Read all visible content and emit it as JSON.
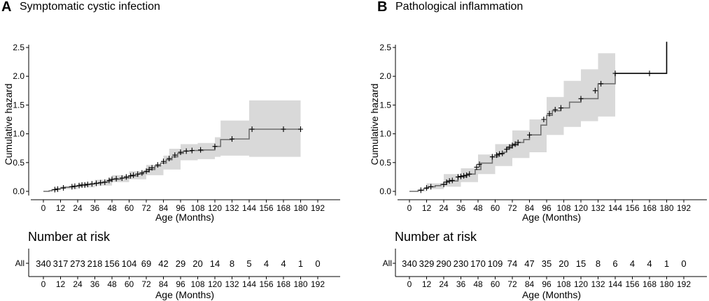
{
  "chart_data": [
    {
      "type": "line",
      "panel_letter": "A",
      "title": "Symptomatic cystic infection",
      "xlabel": "Age (Months)",
      "ylabel": "Cumulative hazard",
      "xlim": [
        0,
        192
      ],
      "ylim": [
        0,
        2.6
      ],
      "x_ticks": [
        0,
        12,
        24,
        36,
        48,
        60,
        72,
        84,
        96,
        108,
        120,
        132,
        144,
        156,
        168,
        180,
        192
      ],
      "y_ticks": [
        0.0,
        0.5,
        1.0,
        1.5,
        2.0,
        2.5
      ],
      "y_tick_labels": [
        "0.0",
        "0.5",
        "1.0",
        "1.5",
        "2.0",
        "2.5"
      ],
      "grid": false,
      "series": [
        {
          "name": "cumulative hazard",
          "step": [
            [
              0,
              0
            ],
            [
              4,
              0.01
            ],
            [
              6,
              0.03
            ],
            [
              9,
              0.04
            ],
            [
              12,
              0.06
            ],
            [
              15,
              0.07
            ],
            [
              18,
              0.08
            ],
            [
              21,
              0.09
            ],
            [
              24,
              0.1
            ],
            [
              27,
              0.11
            ],
            [
              30,
              0.12
            ],
            [
              33,
              0.13
            ],
            [
              36,
              0.14
            ],
            [
              39,
              0.15
            ],
            [
              42,
              0.16
            ],
            [
              45,
              0.18
            ],
            [
              48,
              0.21
            ],
            [
              54,
              0.23
            ],
            [
              60,
              0.27
            ],
            [
              66,
              0.3
            ],
            [
              70,
              0.34
            ],
            [
              74,
              0.38
            ],
            [
              78,
              0.44
            ],
            [
              82,
              0.49
            ],
            [
              86,
              0.55
            ],
            [
              90,
              0.6
            ],
            [
              94,
              0.66
            ],
            [
              98,
              0.7
            ],
            [
              104,
              0.71
            ],
            [
              112,
              0.72
            ],
            [
              120,
              0.78
            ],
            [
              124,
              0.9
            ],
            [
              132,
              0.91
            ],
            [
              144,
              1.08
            ],
            [
              180,
              1.08
            ]
          ],
          "ci_upper": [
            [
              0,
              0.01
            ],
            [
              12,
              0.09
            ],
            [
              24,
              0.14
            ],
            [
              36,
              0.2
            ],
            [
              48,
              0.28
            ],
            [
              60,
              0.35
            ],
            [
              72,
              0.46
            ],
            [
              84,
              0.62
            ],
            [
              88,
              0.74
            ],
            [
              96,
              0.82
            ],
            [
              108,
              0.84
            ],
            [
              120,
              0.94
            ],
            [
              124,
              1.23
            ],
            [
              144,
              1.58
            ],
            [
              180,
              1.58
            ]
          ],
          "ci_lower": [
            [
              0,
              0.0
            ],
            [
              12,
              0.04
            ],
            [
              24,
              0.07
            ],
            [
              36,
              0.1
            ],
            [
              48,
              0.16
            ],
            [
              60,
              0.21
            ],
            [
              72,
              0.28
            ],
            [
              84,
              0.38
            ],
            [
              96,
              0.54
            ],
            [
              108,
              0.56
            ],
            [
              120,
              0.6
            ],
            [
              124,
              0.62
            ],
            [
              144,
              0.6
            ],
            [
              180,
              0.6
            ]
          ],
          "censor_marks": [
            [
              8,
              0.03
            ],
            [
              10,
              0.04
            ],
            [
              14,
              0.06
            ],
            [
              20,
              0.08
            ],
            [
              22,
              0.09
            ],
            [
              25,
              0.1
            ],
            [
              27,
              0.11
            ],
            [
              29,
              0.11
            ],
            [
              31,
              0.12
            ],
            [
              34,
              0.13
            ],
            [
              37,
              0.14
            ],
            [
              40,
              0.15
            ],
            [
              43,
              0.16
            ],
            [
              46,
              0.19
            ],
            [
              48,
              0.21
            ],
            [
              51,
              0.22
            ],
            [
              55,
              0.23
            ],
            [
              58,
              0.25
            ],
            [
              61,
              0.27
            ],
            [
              63,
              0.28
            ],
            [
              66,
              0.3
            ],
            [
              69,
              0.32
            ],
            [
              72,
              0.35
            ],
            [
              74,
              0.38
            ],
            [
              76,
              0.41
            ],
            [
              80,
              0.46
            ],
            [
              84,
              0.52
            ],
            [
              88,
              0.57
            ],
            [
              92,
              0.63
            ],
            [
              96,
              0.68
            ],
            [
              100,
              0.7
            ],
            [
              104,
              0.71
            ],
            [
              110,
              0.72
            ],
            [
              120,
              0.78
            ],
            [
              132,
              0.91
            ],
            [
              146,
              1.08
            ],
            [
              168,
              1.08
            ],
            [
              180,
              1.08
            ]
          ]
        }
      ],
      "risk_table": {
        "title": "Number at risk",
        "row_label": "All",
        "times": [
          0,
          12,
          24,
          36,
          48,
          60,
          72,
          84,
          96,
          108,
          120,
          132,
          144,
          156,
          168,
          180,
          192
        ],
        "counts": [
          "340",
          "317",
          "273",
          "218",
          "156",
          "104",
          "69",
          "42",
          "29",
          "20",
          "14",
          "8",
          "5",
          "4",
          "4",
          "1",
          "0"
        ],
        "xlabel": "Age (Months)"
      }
    },
    {
      "type": "line",
      "panel_letter": "B",
      "title": "Pathological inflammation",
      "xlabel": "Age (Months)",
      "ylabel": "Cumulative hazard",
      "xlim": [
        0,
        192
      ],
      "ylim": [
        0,
        2.6
      ],
      "x_ticks": [
        0,
        12,
        24,
        36,
        48,
        60,
        72,
        84,
        96,
        108,
        120,
        132,
        144,
        156,
        168,
        180,
        192
      ],
      "y_ticks": [
        0.0,
        0.5,
        1.0,
        1.5,
        2.0,
        2.5
      ],
      "y_tick_labels": [
        "0.0",
        "0.5",
        "1.0",
        "1.5",
        "2.0",
        "2.5"
      ],
      "grid": false,
      "series": [
        {
          "name": "cumulative hazard",
          "step": [
            [
              0,
              0
            ],
            [
              6,
              0.02
            ],
            [
              10,
              0.05
            ],
            [
              13,
              0.08
            ],
            [
              18,
              0.1
            ],
            [
              22,
              0.12
            ],
            [
              26,
              0.18
            ],
            [
              34,
              0.25
            ],
            [
              40,
              0.3
            ],
            [
              46,
              0.38
            ],
            [
              50,
              0.49
            ],
            [
              58,
              0.6
            ],
            [
              62,
              0.65
            ],
            [
              66,
              0.68
            ],
            [
              68,
              0.75
            ],
            [
              72,
              0.8
            ],
            [
              76,
              0.85
            ],
            [
              80,
              0.9
            ],
            [
              84,
              0.98
            ],
            [
              92,
              1.15
            ],
            [
              96,
              1.32
            ],
            [
              100,
              1.4
            ],
            [
              106,
              1.45
            ],
            [
              112,
              1.55
            ],
            [
              120,
              1.61
            ],
            [
              132,
              1.87
            ],
            [
              144,
              2.05
            ],
            [
              180,
              2.05
            ],
            [
              180,
              2.6
            ]
          ],
          "ci_upper": [
            [
              0,
              0.01
            ],
            [
              12,
              0.14
            ],
            [
              24,
              0.3
            ],
            [
              36,
              0.4
            ],
            [
              48,
              0.64
            ],
            [
              60,
              0.82
            ],
            [
              72,
              1.06
            ],
            [
              84,
              1.25
            ],
            [
              96,
              1.64
            ],
            [
              108,
              1.92
            ],
            [
              120,
              2.12
            ],
            [
              132,
              2.4
            ],
            [
              144,
              2.4
            ]
          ],
          "ci_lower": [
            [
              0,
              0.0
            ],
            [
              12,
              0.04
            ],
            [
              24,
              0.08
            ],
            [
              36,
              0.16
            ],
            [
              48,
              0.3
            ],
            [
              60,
              0.44
            ],
            [
              72,
              0.58
            ],
            [
              84,
              0.68
            ],
            [
              96,
              0.98
            ],
            [
              108,
              1.12
            ],
            [
              120,
              1.22
            ],
            [
              132,
              1.3
            ],
            [
              144,
              1.3
            ]
          ],
          "censor_marks": [
            [
              8,
              0.02
            ],
            [
              12,
              0.06
            ],
            [
              15,
              0.08
            ],
            [
              24,
              0.12
            ],
            [
              26,
              0.16
            ],
            [
              28,
              0.18
            ],
            [
              30,
              0.19
            ],
            [
              34,
              0.25
            ],
            [
              36,
              0.26
            ],
            [
              38,
              0.27
            ],
            [
              40,
              0.28
            ],
            [
              42,
              0.3
            ],
            [
              47,
              0.42
            ],
            [
              49,
              0.47
            ],
            [
              58,
              0.6
            ],
            [
              61,
              0.63
            ],
            [
              63,
              0.65
            ],
            [
              65,
              0.66
            ],
            [
              68,
              0.73
            ],
            [
              70,
              0.77
            ],
            [
              72,
              0.8
            ],
            [
              74,
              0.82
            ],
            [
              76,
              0.85
            ],
            [
              84,
              0.98
            ],
            [
              94,
              1.25
            ],
            [
              98,
              1.35
            ],
            [
              102,
              1.42
            ],
            [
              106,
              1.45
            ],
            [
              120,
              1.61
            ],
            [
              130,
              1.75
            ],
            [
              134,
              1.87
            ],
            [
              144,
              2.05
            ],
            [
              168,
              2.05
            ]
          ]
        }
      ],
      "risk_table": {
        "title": "Number at risk",
        "row_label": "All",
        "times": [
          0,
          12,
          24,
          36,
          48,
          60,
          72,
          84,
          96,
          108,
          120,
          132,
          144,
          156,
          168,
          180,
          192
        ],
        "counts": [
          "340",
          "329",
          "290",
          "230",
          "170",
          "109",
          "74",
          "47",
          "35",
          "20",
          "15",
          "8",
          "6",
          "4",
          "4",
          "1",
          "0"
        ],
        "xlabel": "Age (Months)"
      }
    }
  ]
}
